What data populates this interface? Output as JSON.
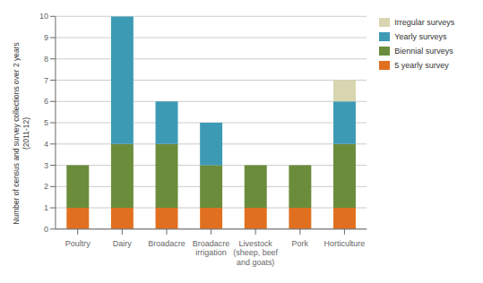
{
  "chart_data": {
    "type": "bar",
    "stacked": true,
    "categories": [
      "Poultry",
      "Dairy",
      "Broadacre",
      "Broadacre\nirrigation",
      "Livestock\n(sheep, beef\nand goats)",
      "Pork",
      "Horticulture"
    ],
    "series": [
      {
        "name": "5 yearly survey",
        "color": "#E07020",
        "values": [
          1,
          1,
          1,
          1,
          1,
          1,
          1
        ]
      },
      {
        "name": "Biennial surveys",
        "color": "#6B8C3A",
        "values": [
          2,
          3,
          3,
          2,
          2,
          2,
          3
        ]
      },
      {
        "name": "Yearly surveys",
        "color": "#3D9AB5",
        "values": [
          0,
          6,
          2,
          2,
          0,
          0,
          2
        ]
      },
      {
        "name": "Irregular surveys",
        "color": "#D8D5B0",
        "values": [
          0,
          0,
          0,
          0,
          0,
          0,
          1
        ]
      }
    ],
    "ylabel": "Number of census and survey collections over 2 years\n(2011-12)",
    "ylim": [
      0,
      10
    ],
    "yticks": [
      0,
      1,
      2,
      3,
      4,
      5,
      6,
      7,
      8,
      9,
      10
    ],
    "grid": true,
    "legend": "right"
  }
}
